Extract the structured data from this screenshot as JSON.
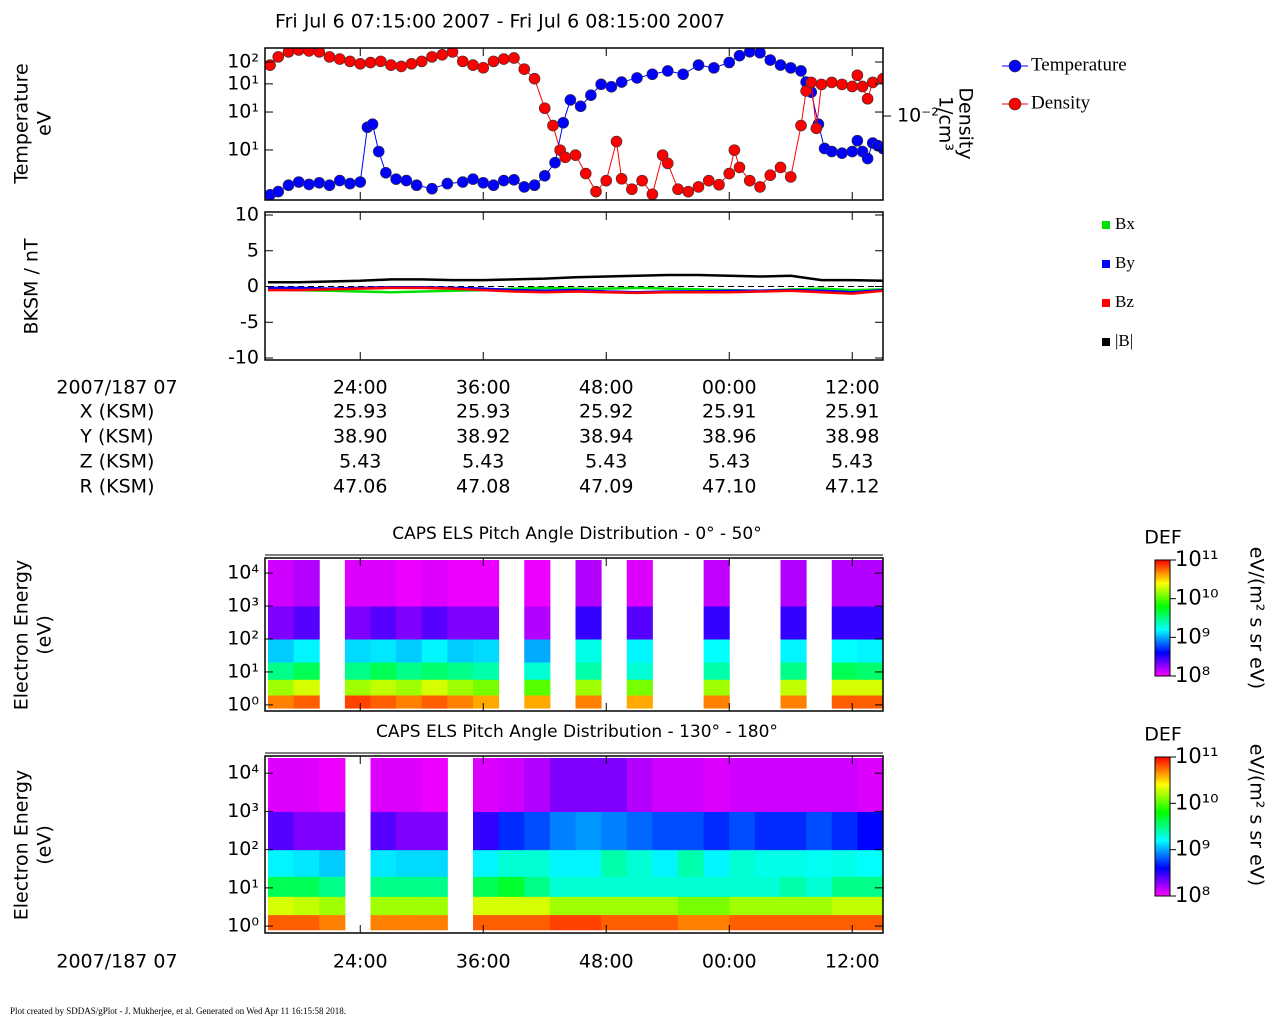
{
  "title": "Fri Jul 6 07:15:00 2007 - Fri Jul 6 08:15:00 2007",
  "footer": "Plot created by SDDAS/gPlot - J. Mukherjee, et al.  Generated on Wed Apr 11 16:15:58 2018.",
  "ephemeris": {
    "time_label": "2007/187 07",
    "rows": [
      {
        "name": "X (KSM)",
        "values": [
          "25.93",
          "25.93",
          "25.92",
          "25.91",
          "25.91"
        ]
      },
      {
        "name": "Y (KSM)",
        "values": [
          "38.90",
          "38.92",
          "38.94",
          "38.96",
          "38.98"
        ]
      },
      {
        "name": "Z (KSM)",
        "values": [
          "5.43",
          "5.43",
          "5.43",
          "5.43",
          "5.43"
        ]
      },
      {
        "name": "R (KSM)",
        "values": [
          "47.06",
          "47.08",
          "47.09",
          "47.10",
          "47.12"
        ]
      }
    ]
  },
  "chart_data": [
    {
      "type": "line",
      "ylabel": [
        "Temperature",
        "eV"
      ],
      "y2label": [
        "Density",
        "1/cm³"
      ],
      "xlim": [
        15,
        75
      ],
      "ylim": [
        3,
        200
      ],
      "ylog": true,
      "yticks": [
        {
          "value": 142,
          "label": "10²"
        },
        {
          "value": 76,
          "label": "10¹"
        },
        {
          "value": 34,
          "label": "10¹"
        },
        {
          "value": 11.5,
          "label": "10¹"
        }
      ],
      "y2lim": [
        0.0015,
        0.047
      ],
      "y2log": true,
      "y2ticks": [
        {
          "value": 0.01,
          "label": "10⁻²"
        }
      ],
      "markers": true,
      "series": [
        {
          "name": "Temperature",
          "color": "#0000ff",
          "x": [
            15.2,
            16,
            17,
            18,
            19,
            20,
            21,
            22,
            23,
            24,
            24.7,
            25.2,
            25.8,
            26.5,
            27.5,
            28.5,
            29.5,
            31,
            32.5,
            34,
            35,
            36,
            37,
            38,
            39,
            40,
            41,
            42,
            43,
            43.8,
            44.5,
            45.5,
            46.5,
            47.5,
            48.5,
            49.5,
            51,
            52.5,
            54,
            55.5,
            57,
            58.5,
            60,
            61,
            62,
            63,
            64,
            65,
            66,
            67,
            67.5,
            68,
            68.7,
            69.3,
            70,
            71,
            72,
            72.5,
            73,
            73.5,
            74,
            74.5,
            75
          ],
          "values": [
            3.2,
            3.5,
            4.2,
            4.6,
            4.3,
            4.5,
            4.2,
            4.8,
            4.4,
            4.6,
            22,
            24,
            11,
            6,
            5,
            4.8,
            4.2,
            3.8,
            4.4,
            4.6,
            5,
            4.5,
            4.2,
            4.8,
            4.9,
            4,
            4.2,
            5.5,
            8,
            25,
            48,
            40,
            55,
            75,
            70,
            80,
            90,
            100,
            110,
            100,
            130,
            120,
            140,
            170,
            190,
            185,
            150,
            130,
            120,
            110,
            80,
            60,
            24,
            12,
            11,
            10.5,
            11,
            15,
            11,
            9,
            14,
            13,
            12
          ]
        },
        {
          "name": "Density",
          "color": "#ff0000",
          "axis": "y2",
          "x": [
            15.2,
            16,
            17,
            18,
            19,
            20,
            21,
            22,
            23,
            24,
            25,
            26,
            27,
            28,
            29,
            30,
            31,
            32,
            33,
            34,
            35,
            36,
            37,
            38,
            39,
            40,
            41,
            42,
            42.8,
            43.5,
            44,
            45,
            46,
            47,
            48,
            49,
            49.5,
            50.5,
            51.5,
            52.5,
            53.5,
            54,
            55,
            56,
            57,
            58,
            59,
            60,
            60.5,
            61,
            62,
            63,
            64,
            65,
            66,
            67,
            67.5,
            68,
            68.5,
            69,
            70,
            71,
            72,
            72.5,
            73,
            73.5,
            74,
            75
          ],
          "values": [
            0.033,
            0.04,
            0.045,
            0.047,
            0.046,
            0.045,
            0.04,
            0.038,
            0.036,
            0.034,
            0.035,
            0.036,
            0.033,
            0.032,
            0.034,
            0.036,
            0.04,
            0.042,
            0.045,
            0.036,
            0.033,
            0.031,
            0.036,
            0.038,
            0.039,
            0.03,
            0.024,
            0.012,
            0.008,
            0.0045,
            0.0038,
            0.004,
            0.0026,
            0.0017,
            0.0022,
            0.0055,
            0.0023,
            0.0018,
            0.0022,
            0.0016,
            0.004,
            0.0033,
            0.0018,
            0.0017,
            0.0019,
            0.0022,
            0.002,
            0.0026,
            0.0045,
            0.003,
            0.0022,
            0.0019,
            0.0025,
            0.003,
            0.0024,
            0.008,
            0.018,
            0.022,
            0.0075,
            0.021,
            0.022,
            0.021,
            0.02,
            0.026,
            0.02,
            0.015,
            0.022,
            0.024
          ]
        }
      ]
    },
    {
      "type": "line",
      "ylabel": [
        "BKSM / nT"
      ],
      "xlim": [
        15,
        75
      ],
      "xticks": [
        {
          "value": 24,
          "label": "24:00"
        },
        {
          "value": 36,
          "label": "36:00"
        },
        {
          "value": 48,
          "label": "48:00"
        },
        {
          "value": 60,
          "label": "00:00"
        },
        {
          "value": 72,
          "label": "12:00"
        }
      ],
      "ylim": [
        -10,
        10
      ],
      "yticks": [
        -10,
        -5,
        0,
        5,
        10
      ],
      "x": [
        15,
        18,
        21,
        24,
        27,
        30,
        33,
        36,
        39,
        42,
        45,
        48,
        51,
        54,
        57,
        60,
        63,
        66,
        69,
        72,
        75
      ],
      "series": [
        {
          "name": "Bx",
          "color": "#00e000",
          "values": [
            -0.4,
            -0.5,
            -0.6,
            -0.7,
            -0.8,
            -0.7,
            -0.6,
            -0.5,
            -0.3,
            -0.2,
            -0.3,
            -0.3,
            -0.2,
            -0.3,
            -0.4,
            -0.5,
            -0.6,
            -0.4,
            -0.3,
            -0.5,
            -0.4
          ]
        },
        {
          "name": "By",
          "color": "#0000ff",
          "values": [
            -0.2,
            -0.2,
            -0.3,
            -0.2,
            -0.1,
            -0.1,
            -0.2,
            -0.3,
            -0.5,
            -0.6,
            -0.5,
            -0.7,
            -0.8,
            -0.7,
            -0.7,
            -0.6,
            -0.6,
            -0.5,
            -0.6,
            -0.8,
            -0.5
          ]
        },
        {
          "name": "Bz",
          "color": "#ff0000",
          "values": [
            -0.5,
            -0.5,
            -0.4,
            -0.3,
            -0.2,
            -0.2,
            -0.3,
            -0.5,
            -0.7,
            -0.8,
            -0.7,
            -0.8,
            -0.9,
            -0.8,
            -0.8,
            -0.8,
            -0.7,
            -0.6,
            -0.8,
            -1.0,
            -0.6
          ]
        },
        {
          "name": "|B|",
          "color": "#000000",
          "values": [
            0.6,
            0.6,
            0.7,
            0.8,
            1.0,
            1.0,
            0.9,
            0.9,
            1.0,
            1.1,
            1.3,
            1.4,
            1.5,
            1.6,
            1.6,
            1.5,
            1.4,
            1.5,
            0.9,
            0.9,
            0.8
          ]
        }
      ]
    },
    {
      "type": "heatmap",
      "title": "CAPS ELS Pitch Angle Distribution - 0° - 50°",
      "ylabel": [
        "Electron Energy",
        "(eV)"
      ],
      "xlim": [
        15,
        75
      ],
      "ylim": [
        0.7,
        25000
      ],
      "ylog": true,
      "yticks": [
        {
          "value": 1,
          "label": "10⁰"
        },
        {
          "value": 10,
          "label": "10¹"
        },
        {
          "value": 100,
          "label": "10²"
        },
        {
          "value": 1000,
          "label": "10³"
        },
        {
          "value": 10000,
          "label": "10⁴"
        }
      ],
      "xbins": [
        15,
        17.5,
        20,
        22.5,
        25,
        27.5,
        30,
        32.5,
        35,
        37.5,
        40,
        42.5,
        45,
        47.5,
        50,
        52.5,
        55,
        57.5,
        60,
        62.5,
        65,
        67.5,
        70,
        72.5,
        75
      ],
      "ybins": [
        0.8,
        2,
        6,
        20,
        100,
        1000,
        25000
      ],
      "colorbar": {
        "label": "DEF",
        "units": "eV/(m² s sr eV)",
        "lim": [
          100000000.0,
          100000000000.0
        ],
        "ticks": [
          {
            "value": 100000000.0,
            "label": "10⁸"
          },
          {
            "value": 1000000000.0,
            "label": "10⁹"
          },
          {
            "value": 10000000000.0,
            "label": "10¹⁰"
          },
          {
            "value": 100000000000.0,
            "label": "10¹¹"
          }
        ]
      },
      "values": [
        [
          50000000000.0,
          15000000000.0,
          3000000000.0,
          1200000000.0,
          200000000.0,
          130000000.0
        ],
        [
          60000000000.0,
          20000000000.0,
          4000000000.0,
          1500000000.0,
          250000000.0,
          150000000.0
        ],
        null,
        [
          70000000000.0,
          15000000000.0,
          3000000000.0,
          1300000000.0,
          200000000.0,
          120000000.0
        ],
        [
          60000000000.0,
          18000000000.0,
          4000000000.0,
          1400000000.0,
          250000000.0,
          120000000.0
        ],
        [
          50000000000.0,
          15000000000.0,
          3000000000.0,
          1200000000.0,
          200000000.0,
          110000000.0
        ],
        [
          60000000000.0,
          20000000000.0,
          3500000000.0,
          1500000000.0,
          250000000.0,
          120000000.0
        ],
        [
          50000000000.0,
          15000000000.0,
          3000000000.0,
          1200000000.0,
          200000000.0,
          110000000.0
        ],
        [
          40000000000.0,
          12000000000.0,
          2500000000.0,
          1300000000.0,
          200000000.0,
          110000000.0
        ],
        null,
        [
          40000000000.0,
          10000000000.0,
          2000000000.0,
          1000000000.0,
          150000000.0,
          110000000.0
        ],
        null,
        [
          50000000000.0,
          15000000000.0,
          2500000000.0,
          1800000000.0,
          300000000.0,
          150000000.0
        ],
        null,
        [
          40000000000.0,
          12000000000.0,
          2000000000.0,
          1500000000.0,
          250000000.0,
          120000000.0
        ],
        null,
        null,
        [
          50000000000.0,
          15000000000.0,
          2500000000.0,
          1600000000.0,
          300000000.0,
          140000000.0
        ],
        null,
        null,
        [
          50000000000.0,
          18000000000.0,
          3000000000.0,
          1500000000.0,
          300000000.0,
          150000000.0
        ],
        null,
        [
          60000000000.0,
          20000000000.0,
          4000000000.0,
          1600000000.0,
          300000000.0,
          150000000.0
        ],
        [
          60000000000.0,
          20000000000.0,
          3500000000.0,
          1500000000.0,
          300000000.0,
          150000000.0
        ]
      ]
    },
    {
      "type": "heatmap",
      "title": "CAPS ELS Pitch Angle Distribution - 130° - 180°",
      "ylabel": [
        "Electron Energy",
        "(eV)"
      ],
      "xlabel": "2007/187 07",
      "xlim": [
        15,
        75
      ],
      "xticks": [
        {
          "value": 24,
          "label": "24:00"
        },
        {
          "value": 36,
          "label": "36:00"
        },
        {
          "value": 48,
          "label": "48:00"
        },
        {
          "value": 60,
          "label": "00:00"
        },
        {
          "value": 72,
          "label": "12:00"
        }
      ],
      "ylim": [
        0.7,
        25000
      ],
      "ylog": true,
      "yticks": [
        {
          "value": 1,
          "label": "10⁰"
        },
        {
          "value": 10,
          "label": "10¹"
        },
        {
          "value": 100,
          "label": "10²"
        },
        {
          "value": 1000,
          "label": "10³"
        },
        {
          "value": 10000,
          "label": "10⁴"
        }
      ],
      "xbins": [
        15,
        17.5,
        20,
        22.5,
        25,
        27.5,
        30,
        32.5,
        35,
        37.5,
        40,
        42.5,
        45,
        47.5,
        50,
        52.5,
        55,
        57.5,
        60,
        62.5,
        65,
        67.5,
        70,
        72.5,
        75
      ],
      "ybins": [
        0.8,
        2,
        6,
        20,
        100,
        1000,
        25000
      ],
      "colorbar": {
        "label": "DEF",
        "units": "eV/(m² s sr eV)",
        "lim": [
          100000000.0,
          100000000000.0
        ],
        "ticks": [
          {
            "value": 100000000.0,
            "label": "10⁸"
          },
          {
            "value": 1000000000.0,
            "label": "10⁹"
          },
          {
            "value": 10000000000.0,
            "label": "10¹⁰"
          },
          {
            "value": 100000000000.0,
            "label": "10¹¹"
          }
        ]
      },
      "values": [
        [
          60000000000.0,
          20000000000.0,
          4000000000.0,
          1500000000.0,
          250000000.0,
          120000000.0
        ],
        [
          60000000000.0,
          18000000000.0,
          4000000000.0,
          1400000000.0,
          200000000.0,
          120000000.0
        ],
        [
          50000000000.0,
          15000000000.0,
          3000000000.0,
          1200000000.0,
          200000000.0,
          110000000.0
        ],
        null,
        [
          50000000000.0,
          15000000000.0,
          3000000000.0,
          1400000000.0,
          250000000.0,
          120000000.0
        ],
        [
          50000000000.0,
          15000000000.0,
          3000000000.0,
          1300000000.0,
          200000000.0,
          120000000.0
        ],
        [
          50000000000.0,
          15000000000.0,
          3000000000.0,
          1300000000.0,
          200000000.0,
          110000000.0
        ],
        null,
        [
          60000000000.0,
          20000000000.0,
          4000000000.0,
          1500000000.0,
          300000000.0,
          120000000.0
        ],
        [
          60000000000.0,
          20000000000.0,
          5000000000.0,
          2000000000.0,
          500000000.0,
          130000000.0
        ],
        [
          60000000000.0,
          20000000000.0,
          3000000000.0,
          2000000000.0,
          600000000.0,
          150000000.0
        ],
        [
          70000000000.0,
          15000000000.0,
          2000000000.0,
          1500000000.0,
          800000000.0,
          200000000.0
        ],
        [
          70000000000.0,
          15000000000.0,
          2000000000.0,
          1500000000.0,
          900000000.0,
          200000000.0
        ],
        [
          60000000000.0,
          15000000000.0,
          2000000000.0,
          2500000000.0,
          800000000.0,
          200000000.0
        ],
        [
          60000000000.0,
          15000000000.0,
          2000000000.0,
          2000000000.0,
          700000000.0,
          150000000.0
        ],
        [
          60000000000.0,
          15000000000.0,
          2000000000.0,
          1500000000.0,
          600000000.0,
          130000000.0
        ],
        [
          50000000000.0,
          12000000000.0,
          2000000000.0,
          2500000000.0,
          600000000.0,
          130000000.0
        ],
        [
          50000000000.0,
          12000000000.0,
          2000000000.0,
          1500000000.0,
          500000000.0,
          120000000.0
        ],
        [
          60000000000.0,
          15000000000.0,
          2000000000.0,
          2000000000.0,
          600000000.0,
          130000000.0
        ],
        [
          60000000000.0,
          15000000000.0,
          2000000000.0,
          1800000000.0,
          500000000.0,
          130000000.0
        ],
        [
          60000000000.0,
          15000000000.0,
          2500000000.0,
          1800000000.0,
          500000000.0,
          130000000.0
        ],
        [
          60000000000.0,
          15000000000.0,
          2000000000.0,
          1700000000.0,
          600000000.0,
          130000000.0
        ],
        [
          60000000000.0,
          18000000000.0,
          3000000000.0,
          1800000000.0,
          500000000.0,
          130000000.0
        ],
        [
          60000000000.0,
          18000000000.0,
          3000000000.0,
          1600000000.0,
          400000000.0,
          120000000.0
        ]
      ]
    }
  ]
}
